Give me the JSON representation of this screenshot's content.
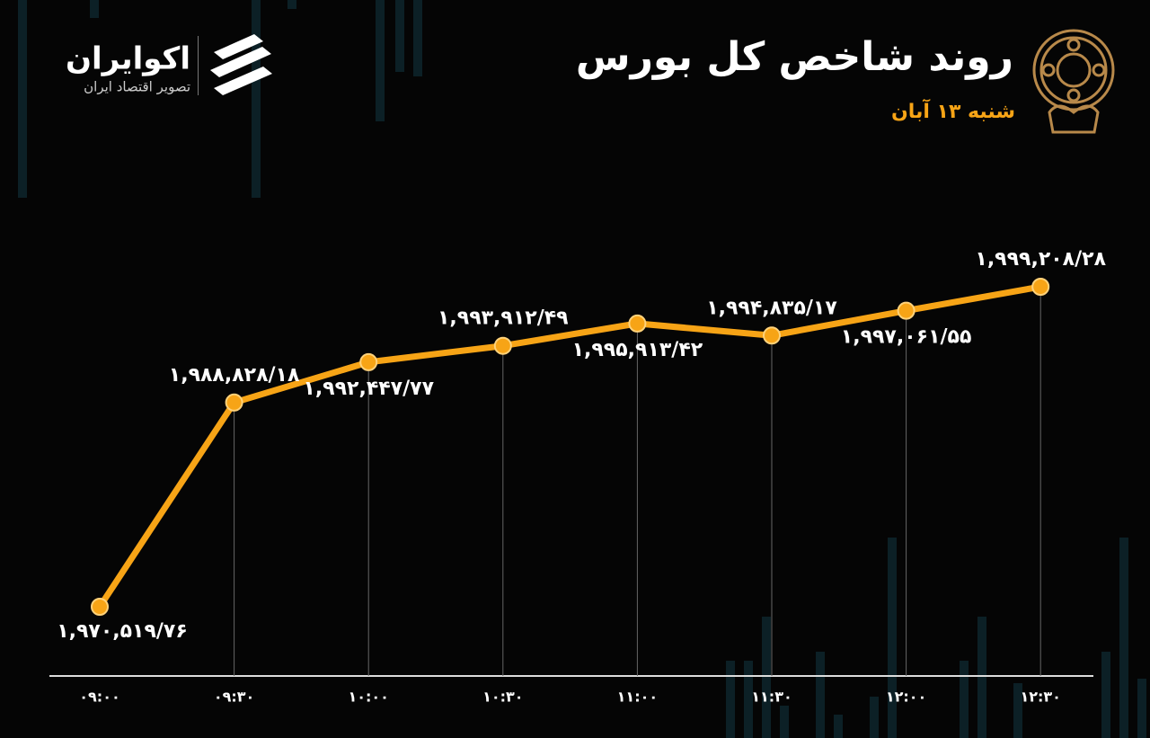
{
  "brand": {
    "name": "اکوایران",
    "tagline": "تصویر اقتصاد ایران"
  },
  "chart_data": {
    "type": "line",
    "title": "روند شاخص کل بورس",
    "subtitle": "شنبه ۱۳ آبان",
    "categories": [
      "۰۹:۰۰",
      "۰۹:۳۰",
      "۱۰:۰۰",
      "۱۰:۳۰",
      "۱۱:۰۰",
      "۱۱:۳۰",
      "۱۲:۰۰",
      "۱۲:۳۰"
    ],
    "values": [
      1970519.76,
      1988828.18,
      1992447.77,
      1993912.49,
      1995913.42,
      1994835.17,
      1997061.55,
      1999208.28
    ],
    "value_labels": [
      "۱,۹۷۰,۵۱۹/۷۶",
      "۱,۹۸۸,۸۲۸/۱۸",
      "۱,۹۹۲,۴۴۷/۷۷",
      "۱,۹۹۳,۹۱۲/۴۹",
      "۱,۹۹۵,۹۱۳/۴۲",
      "۱,۹۹۴,۸۳۵/۱۷",
      "۱,۹۹۷,۰۶۱/۵۵",
      "۱,۹۹۹,۲۰۸/۲۸"
    ],
    "color": "#f7a416"
  }
}
